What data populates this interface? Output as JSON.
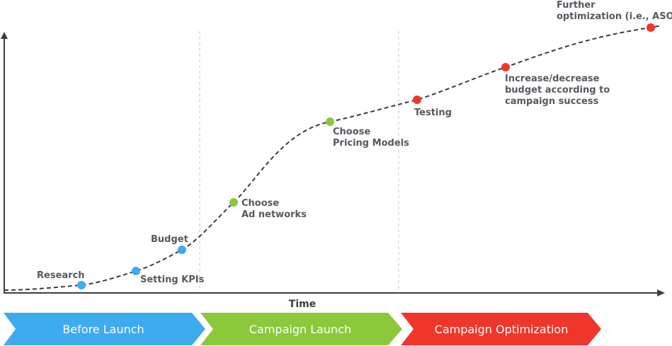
{
  "axis": {
    "x_label": "Time"
  },
  "colors": {
    "before_launch": "#3eaaf0",
    "campaign_launch": "#8bc83a",
    "campaign_optimization": "#f0362b",
    "curve": "#3a3d42",
    "label": "#55595f"
  },
  "milestones": [
    {
      "label_lines": [
        "Research"
      ],
      "phase": "before_launch"
    },
    {
      "label_lines": [
        "Setting KPIs"
      ],
      "phase": "before_launch"
    },
    {
      "label_lines": [
        "Budget"
      ],
      "phase": "before_launch"
    },
    {
      "label_lines": [
        "Choose",
        "Ad networks"
      ],
      "phase": "campaign_launch"
    },
    {
      "label_lines": [
        "Choose",
        "Pricing Models"
      ],
      "phase": "campaign_launch"
    },
    {
      "label_lines": [
        "Testing"
      ],
      "phase": "campaign_optimization"
    },
    {
      "label_lines": [
        "Increase/decrease",
        "budget according to",
        "campaign success"
      ],
      "phase": "campaign_optimization"
    },
    {
      "label_lines": [
        "Further",
        "optimization (i.e., ASO)"
      ],
      "phase": "campaign_optimization"
    }
  ],
  "phases": [
    {
      "id": "before_launch",
      "label": "Before Launch"
    },
    {
      "id": "campaign_launch",
      "label": "Campaign Launch"
    },
    {
      "id": "campaign_optimization",
      "label": "Campaign Optimization"
    }
  ]
}
